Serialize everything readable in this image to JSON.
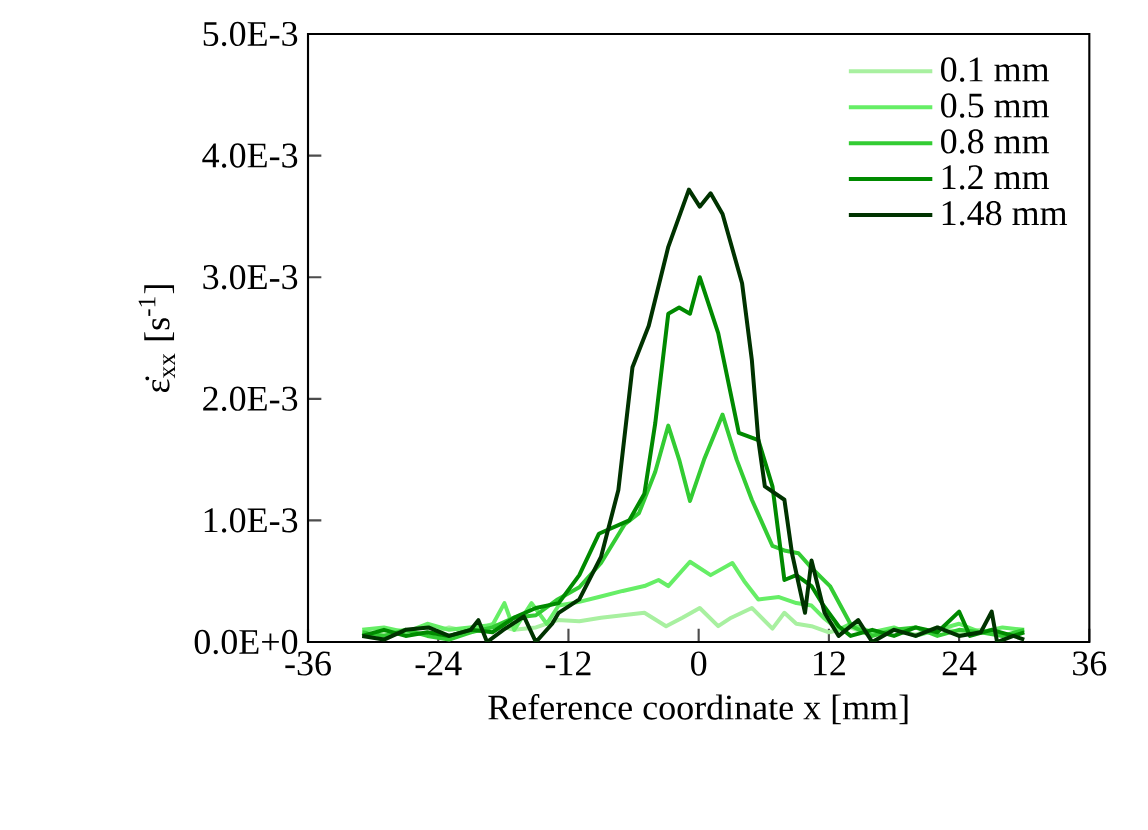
{
  "chart_data": {
    "type": "line",
    "xlabel": "Reference coordinate x [mm]",
    "ylabel": "ε̇$_{xx}$ [s$^{-1}$]",
    "xlim": [
      -36,
      36
    ],
    "xticks": [
      -36,
      -24,
      -12,
      0,
      12,
      24,
      36
    ],
    "ylim": [
      0,
      0.005
    ],
    "yticks": [
      {
        "value": 0,
        "label": "0.0E+0"
      },
      {
        "value": 0.001,
        "label": "1.0E-3"
      },
      {
        "value": 0.002,
        "label": "2.0E-3"
      },
      {
        "value": 0.003,
        "label": "3.0E-3"
      },
      {
        "value": 0.004,
        "label": "4.0E-3"
      },
      {
        "value": 0.005,
        "label": "5.0E-3"
      }
    ],
    "grid": false,
    "legend": "top right",
    "marker": "none",
    "line_style": "solid",
    "series": [
      {
        "name": "0.1 mm",
        "color": "#a8f0a0",
        "x": [
          -31,
          -29,
          -27,
          -25,
          -23,
          -21,
          -19,
          -17,
          -15,
          -13,
          -11,
          -9,
          -7,
          -5,
          -3,
          -1.5,
          0.1,
          1.8,
          3,
          4.9,
          6.8,
          7.9,
          9,
          10.4,
          12,
          14,
          16,
          18,
          20,
          22,
          24,
          26,
          28,
          30
        ],
        "values": [
          5e-05,
          8e-05,
          0.0001,
          6e-05,
          0.00012,
          8e-05,
          0.00015,
          0.0001,
          0.00012,
          0.00018,
          0.00017,
          0.0002,
          0.00022,
          0.00024,
          0.00013,
          0.0002,
          0.00028,
          0.00013,
          0.0002,
          0.00028,
          0.00011,
          0.00024,
          0.00015,
          0.00013,
          8e-05,
          0.00012,
          5e-05,
          0.0001,
          6e-05,
          0.00012,
          8e-05,
          0.0001,
          5e-05,
          8e-05
        ]
      },
      {
        "name": "0.5 mm",
        "color": "#66ee66",
        "x": [
          -31,
          -29,
          -27,
          -25,
          -23,
          -21,
          -19,
          -17.9,
          -17,
          -15.4,
          -14,
          -12.9,
          -11,
          -9.2,
          -7,
          -5,
          -3.7,
          -2.8,
          -0.8,
          1.1,
          3.1,
          4.2,
          5.5,
          7.4,
          9,
          10.4,
          11.5,
          12.9,
          14,
          16,
          18,
          20,
          22,
          24,
          26,
          28,
          30
        ],
        "values": [
          0.0001,
          0.00012,
          8e-05,
          0.00015,
          0.0001,
          0.00012,
          0.00014,
          0.00032,
          0.0001,
          0.00032,
          0.00015,
          0.0003,
          0.00033,
          0.00037,
          0.00042,
          0.00046,
          0.00051,
          0.00046,
          0.00066,
          0.00055,
          0.00065,
          0.0005,
          0.00035,
          0.00037,
          0.00032,
          0.0003,
          0.0002,
          0.0001,
          0.00015,
          8e-05,
          0.00012,
          5e-05,
          0.0001,
          0.00015,
          8e-05,
          0.00012,
          0.0001
        ]
      },
      {
        "name": "0.8 mm",
        "color": "#33cc33",
        "x": [
          -31,
          -29,
          -27,
          -25,
          -23,
          -21,
          -19,
          -17,
          -15,
          -13,
          -11,
          -9,
          -6.8,
          -5.5,
          -4,
          -2.8,
          -1.8,
          -0.8,
          0.5,
          2.2,
          3.5,
          4.9,
          6.8,
          8,
          9.2,
          10.5,
          12.1,
          14.1,
          16,
          18,
          20,
          22,
          24,
          26,
          28,
          30
        ],
        "values": [
          8e-05,
          5e-05,
          0.0001,
          5e-05,
          2e-05,
          8e-05,
          0.00012,
          0.0002,
          0.00022,
          0.00035,
          0.00045,
          0.00065,
          0.00097,
          0.00106,
          0.0014,
          0.00178,
          0.0015,
          0.00116,
          0.0015,
          0.00187,
          0.0015,
          0.00117,
          0.00079,
          0.00075,
          0.00073,
          0.0006,
          0.00046,
          0.00013,
          5e-05,
          0.0001,
          0.00012,
          5e-05,
          0.0001,
          8e-05,
          5e-05,
          0.0001
        ]
      },
      {
        "name": "1.2 mm",
        "color": "#008a00",
        "x": [
          -31,
          -29,
          -27,
          -25,
          -23,
          -21,
          -19,
          -17,
          -15,
          -12.9,
          -11,
          -9.2,
          -6.4,
          -5,
          -4,
          -2.8,
          -1.8,
          -0.8,
          0.1,
          1.8,
          3.7,
          5.5,
          6.8,
          7.9,
          9,
          10.4,
          11.5,
          12.9,
          14,
          16,
          18,
          20,
          22,
          24,
          25,
          27,
          29,
          30
        ],
        "values": [
          5e-05,
          0.0001,
          5e-05,
          8e-05,
          5e-05,
          0.0001,
          8e-05,
          0.0002,
          0.00028,
          0.00032,
          0.00055,
          0.00089,
          0.001,
          0.00122,
          0.0018,
          0.0027,
          0.00275,
          0.0027,
          0.003,
          0.00254,
          0.00172,
          0.00166,
          0.00128,
          0.00051,
          0.00055,
          0.00046,
          0.0003,
          0.00013,
          5e-05,
          0.0001,
          5e-05,
          0.00012,
          8e-05,
          0.00025,
          5e-05,
          0.0001,
          5e-05,
          8e-05
        ]
      },
      {
        "name": "1.48 mm",
        "color": "#003300",
        "x": [
          -31,
          -29,
          -27,
          -24.9,
          -23,
          -21,
          -20.3,
          -19.5,
          -18,
          -16.1,
          -15,
          -13.5,
          -12.9,
          -11,
          -9,
          -7.4,
          -6.1,
          -4.6,
          -2.8,
          -0.9,
          0.1,
          1.1,
          2.2,
          4,
          4.9,
          5.5,
          6.1,
          7.9,
          8.6,
          9.8,
          10.4,
          11.6,
          12.9,
          14.7,
          16,
          18,
          20,
          22,
          24,
          26,
          27,
          27.5,
          29,
          30
        ],
        "values": [
          5e-05,
          2e-05,
          0.0001,
          0.00012,
          5e-05,
          0.0001,
          0.00018,
          0,
          0.0001,
          0.00021,
          0,
          0.00015,
          0.00024,
          0.00035,
          0.0007,
          0.00125,
          0.00226,
          0.0026,
          0.00325,
          0.00372,
          0.00358,
          0.00369,
          0.00352,
          0.00295,
          0.00232,
          0.00166,
          0.00128,
          0.00117,
          0.00073,
          0.00024,
          0.00067,
          0.00024,
          5e-05,
          0.00018,
          0,
          0.0001,
          5e-05,
          0.00012,
          5e-05,
          8e-05,
          0.00025,
          0,
          5e-05,
          2e-05
        ]
      }
    ]
  }
}
